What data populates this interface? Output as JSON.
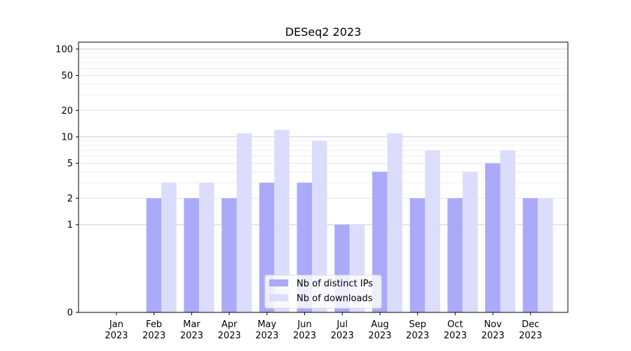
{
  "chart_data": {
    "type": "bar",
    "title": "DESeq2 2023",
    "xlabel": "",
    "ylabel": "",
    "y_scale": "symlog",
    "ylim": [
      0,
      120
    ],
    "y_ticks": [
      0,
      1,
      2,
      5,
      10,
      20,
      50,
      100
    ],
    "categories": [
      [
        "Jan",
        "2023"
      ],
      [
        "Feb",
        "2023"
      ],
      [
        "Mar",
        "2023"
      ],
      [
        "Apr",
        "2023"
      ],
      [
        "May",
        "2023"
      ],
      [
        "Jun",
        "2023"
      ],
      [
        "Jul",
        "2023"
      ],
      [
        "Aug",
        "2023"
      ],
      [
        "Sep",
        "2023"
      ],
      [
        "Oct",
        "2023"
      ],
      [
        "Nov",
        "2023"
      ],
      [
        "Dec",
        "2023"
      ]
    ],
    "series": [
      {
        "name": "Nb of distinct IPs",
        "color": "#aaaaf8",
        "values": [
          0,
          2,
          2,
          2,
          3,
          3,
          1,
          4,
          2,
          2,
          5,
          2
        ]
      },
      {
        "name": "Nb of downloads",
        "color": "#dcdcfc",
        "values": [
          0,
          3,
          3,
          11,
          12,
          9,
          1,
          11,
          7,
          4,
          7,
          2
        ]
      }
    ],
    "grid": true,
    "legend_position": "lower-center"
  }
}
